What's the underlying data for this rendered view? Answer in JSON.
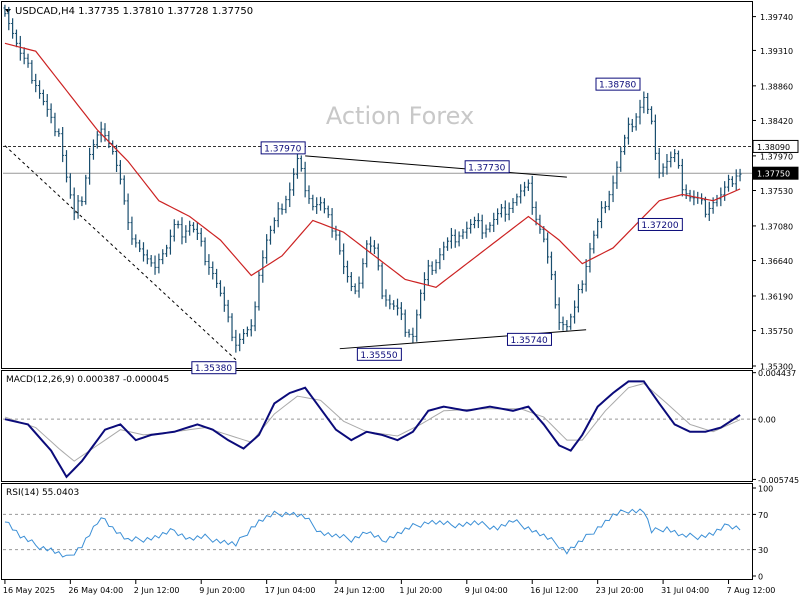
{
  "header": {
    "symbol_line": "USDCAD,H4  1.37735 1.37810 1.37728 1.37750"
  },
  "watermark": "Action Forex",
  "colors": {
    "price_bars": "#1a4e6e",
    "ma_line": "#cc2222",
    "trendline": "#000000",
    "macd_line": "#0b0b7a",
    "macd_signal": "#aaaaaa",
    "rsi_line": "#3b8fd6",
    "label_border": "#0b0b7a",
    "current_price_tag": "#000000"
  },
  "chart_data": [
    {
      "type": "ohlc",
      "title": "USDCAD,H4",
      "ohlc_values": {
        "open": 1.37735,
        "high": 1.3781,
        "low": 1.37728,
        "close": 1.3775
      },
      "y_ticks": [
        "1.39740",
        "1.39310",
        "1.38860",
        "1.38420",
        "1.37970",
        "1.37530",
        "1.37080",
        "1.36640",
        "1.36190",
        "1.35750",
        "1.35300"
      ],
      "ylim": [
        1.353,
        1.399
      ],
      "x_ticks": [
        "16 May 2025",
        "26 May 04:00",
        "2 Jun 12:00",
        "9 Jun 20:00",
        "17 Jun 04:00",
        "24 Jun 12:00",
        "1 Jul 20:00",
        "9 Jul 04:00",
        "16 Jul 12:00",
        "23 Jul 20:00",
        "31 Jul 04:00",
        "7 Aug 12:00"
      ],
      "close_anchors": [
        [
          0,
          1.3985
        ],
        [
          4,
          1.3925
        ],
        [
          8,
          1.389
        ],
        [
          12,
          1.384
        ],
        [
          14,
          1.383
        ],
        [
          16,
          1.377
        ],
        [
          18,
          1.372
        ],
        [
          20,
          1.3745
        ],
        [
          22,
          1.38
        ],
        [
          24,
          1.382
        ],
        [
          26,
          1.383
        ],
        [
          28,
          1.3805
        ],
        [
          30,
          1.3765
        ],
        [
          32,
          1.3705
        ],
        [
          34,
          1.369
        ],
        [
          36,
          1.367
        ],
        [
          38,
          1.3655
        ],
        [
          40,
          1.367
        ],
        [
          42,
          1.368
        ],
        [
          44,
          1.3705
        ],
        [
          46,
          1.37
        ],
        [
          48,
          1.371
        ],
        [
          50,
          1.3695
        ],
        [
          52,
          1.367
        ],
        [
          54,
          1.365
        ],
        [
          56,
          1.362
        ],
        [
          58,
          1.3585
        ],
        [
          60,
          1.356
        ],
        [
          62,
          1.357
        ],
        [
          64,
          1.3575
        ],
        [
          66,
          1.365
        ],
        [
          68,
          1.369
        ],
        [
          70,
          1.371
        ],
        [
          72,
          1.3735
        ],
        [
          74,
          1.3755
        ],
        [
          76,
          1.379
        ],
        [
          78,
          1.376
        ],
        [
          80,
          1.3735
        ],
        [
          82,
          1.3735
        ],
        [
          84,
          1.3715
        ],
        [
          86,
          1.37
        ],
        [
          88,
          1.3655
        ],
        [
          90,
          1.3625
        ],
        [
          92,
          1.364
        ],
        [
          94,
          1.3685
        ],
        [
          96,
          1.3675
        ],
        [
          98,
          1.3625
        ],
        [
          100,
          1.361
        ],
        [
          102,
          1.36
        ],
        [
          104,
          1.358
        ],
        [
          106,
          1.357
        ],
        [
          108,
          1.362
        ],
        [
          110,
          1.365
        ],
        [
          112,
          1.3665
        ],
        [
          114,
          1.368
        ],
        [
          116,
          1.369
        ],
        [
          118,
          1.37
        ],
        [
          120,
          1.3705
        ],
        [
          122,
          1.371
        ],
        [
          124,
          1.3705
        ],
        [
          126,
          1.371
        ],
        [
          128,
          1.372
        ],
        [
          130,
          1.373
        ],
        [
          132,
          1.374
        ],
        [
          134,
          1.375
        ],
        [
          136,
          1.3755
        ],
        [
          138,
          1.372
        ],
        [
          140,
          1.369
        ],
        [
          142,
          1.364
        ],
        [
          144,
          1.359
        ],
        [
          146,
          1.358
        ],
        [
          148,
          1.36
        ],
        [
          150,
          1.364
        ],
        [
          152,
          1.368
        ],
        [
          154,
          1.371
        ],
        [
          156,
          1.374
        ],
        [
          158,
          1.3765
        ],
        [
          160,
          1.38
        ],
        [
          162,
          1.383
        ],
        [
          164,
          1.385
        ],
        [
          166,
          1.387
        ],
        [
          168,
          1.3835
        ],
        [
          170,
          1.378
        ],
        [
          172,
          1.379
        ],
        [
          174,
          1.3795
        ],
        [
          176,
          1.376
        ],
        [
          178,
          1.3745
        ],
        [
          180,
          1.374
        ],
        [
          182,
          1.373
        ],
        [
          184,
          1.374
        ],
        [
          186,
          1.3745
        ],
        [
          188,
          1.376
        ],
        [
          190,
          1.3775
        ],
        [
          191,
          1.3775
        ]
      ],
      "ma_anchors": [
        [
          0,
          1.394
        ],
        [
          8,
          1.393
        ],
        [
          16,
          1.388
        ],
        [
          24,
          1.383
        ],
        [
          32,
          1.379
        ],
        [
          40,
          1.374
        ],
        [
          48,
          1.372
        ],
        [
          56,
          1.369
        ],
        [
          64,
          1.3645
        ],
        [
          72,
          1.367
        ],
        [
          80,
          1.3715
        ],
        [
          88,
          1.37
        ],
        [
          96,
          1.367
        ],
        [
          104,
          1.364
        ],
        [
          112,
          1.363
        ],
        [
          120,
          1.366
        ],
        [
          128,
          1.369
        ],
        [
          136,
          1.372
        ],
        [
          144,
          1.369
        ],
        [
          150,
          1.366
        ],
        [
          158,
          1.368
        ],
        [
          166,
          1.372
        ],
        [
          170,
          1.374
        ],
        [
          176,
          1.3748
        ],
        [
          184,
          1.374
        ],
        [
          191,
          1.3755
        ]
      ],
      "annotations": [
        {
          "label": "1.35380",
          "x": 60,
          "y": 1.3538
        },
        {
          "label": "1.37970",
          "x": 78,
          "y": 1.3797
        },
        {
          "label": "1.35550",
          "x": 103,
          "y": 1.3555
        },
        {
          "label": "1.37730",
          "x": 131,
          "y": 1.3773
        },
        {
          "label": "1.35740",
          "x": 142,
          "y": 1.3574
        },
        {
          "label": "1.38780",
          "x": 165,
          "y": 1.3878
        },
        {
          "label": "1.37200",
          "x": 176,
          "y": 1.372
        }
      ],
      "trendlines": [
        {
          "style": "dashed",
          "from": [
            0,
            1.381
          ],
          "to": [
            60,
            1.3538
          ]
        },
        {
          "style": "solid",
          "from": [
            78,
            1.3797
          ],
          "to": [
            146,
            1.377
          ]
        },
        {
          "style": "solid",
          "from": [
            87,
            1.3552
          ],
          "to": [
            151,
            1.3576
          ]
        }
      ],
      "hlines": [
        {
          "label": "1.38090",
          "value": 1.3809,
          "style": "dashed"
        },
        {
          "label": "1.37750",
          "value": 1.3775,
          "style": "solid"
        }
      ]
    },
    {
      "type": "line",
      "title": "MACD(12,26,9) 0.000387 -0.000045",
      "y_ticks": [
        "0.004437",
        "0.00",
        "-0.005745"
      ],
      "ylim": [
        -0.0058,
        0.0045
      ],
      "macd_anchors": [
        [
          0,
          0.0
        ],
        [
          6,
          -0.0005
        ],
        [
          12,
          -0.003
        ],
        [
          16,
          -0.0055
        ],
        [
          20,
          -0.004
        ],
        [
          26,
          -0.001
        ],
        [
          30,
          -0.0005
        ],
        [
          34,
          -0.002
        ],
        [
          38,
          -0.0015
        ],
        [
          44,
          -0.0012
        ],
        [
          50,
          -0.0005
        ],
        [
          54,
          -0.001
        ],
        [
          58,
          -0.002
        ],
        [
          62,
          -0.0028
        ],
        [
          66,
          -0.0015
        ],
        [
          70,
          0.0015
        ],
        [
          74,
          0.0025
        ],
        [
          78,
          0.003
        ],
        [
          82,
          0.001
        ],
        [
          86,
          -0.001
        ],
        [
          90,
          -0.002
        ],
        [
          94,
          -0.0012
        ],
        [
          98,
          -0.0015
        ],
        [
          102,
          -0.002
        ],
        [
          106,
          -0.0012
        ],
        [
          110,
          0.0008
        ],
        [
          114,
          0.0012
        ],
        [
          120,
          0.0008
        ],
        [
          126,
          0.0012
        ],
        [
          132,
          0.0008
        ],
        [
          136,
          0.0012
        ],
        [
          140,
          -0.0005
        ],
        [
          144,
          -0.0025
        ],
        [
          147,
          -0.003
        ],
        [
          150,
          -0.0015
        ],
        [
          154,
          0.0012
        ],
        [
          158,
          0.0025
        ],
        [
          162,
          0.0036
        ],
        [
          166,
          0.0036
        ],
        [
          170,
          0.0015
        ],
        [
          174,
          -0.0005
        ],
        [
          178,
          -0.0012
        ],
        [
          182,
          -0.0012
        ],
        [
          186,
          -0.0008
        ],
        [
          191,
          0.0004
        ]
      ],
      "signal_anchors": [
        [
          0,
          0.0002
        ],
        [
          8,
          -0.0008
        ],
        [
          14,
          -0.0028
        ],
        [
          18,
          -0.004
        ],
        [
          24,
          -0.0025
        ],
        [
          30,
          -0.001
        ],
        [
          36,
          -0.0015
        ],
        [
          44,
          -0.0012
        ],
        [
          52,
          -0.0008
        ],
        [
          58,
          -0.0015
        ],
        [
          64,
          -0.0022
        ],
        [
          70,
          0.0005
        ],
        [
          76,
          0.0022
        ],
        [
          82,
          0.0018
        ],
        [
          88,
          -0.0002
        ],
        [
          94,
          -0.0012
        ],
        [
          102,
          -0.0016
        ],
        [
          108,
          -0.0005
        ],
        [
          114,
          0.0008
        ],
        [
          124,
          0.001
        ],
        [
          134,
          0.001
        ],
        [
          140,
          0.0002
        ],
        [
          146,
          -0.002
        ],
        [
          150,
          -0.002
        ],
        [
          156,
          0.0008
        ],
        [
          162,
          0.003
        ],
        [
          166,
          0.0034
        ],
        [
          172,
          0.0015
        ],
        [
          178,
          -0.0005
        ],
        [
          184,
          -0.0012
        ],
        [
          191,
          -5e-05
        ]
      ]
    },
    {
      "type": "line",
      "title": "RSI(14) 55.0403",
      "y_ticks": [
        "100",
        "70",
        "30",
        "0"
      ],
      "ylim": [
        0,
        100
      ],
      "rsi_anchors": [
        [
          0,
          65
        ],
        [
          4,
          45
        ],
        [
          8,
          35
        ],
        [
          12,
          30
        ],
        [
          16,
          20
        ],
        [
          20,
          35
        ],
        [
          24,
          60
        ],
        [
          26,
          65
        ],
        [
          28,
          55
        ],
        [
          32,
          40
        ],
        [
          36,
          42
        ],
        [
          40,
          45
        ],
        [
          44,
          52
        ],
        [
          48,
          42
        ],
        [
          52,
          44
        ],
        [
          56,
          40
        ],
        [
          60,
          35
        ],
        [
          64,
          55
        ],
        [
          66,
          62
        ],
        [
          70,
          70
        ],
        [
          74,
          72
        ],
        [
          78,
          66
        ],
        [
          82,
          50
        ],
        [
          86,
          45
        ],
        [
          90,
          42
        ],
        [
          94,
          50
        ],
        [
          98,
          40
        ],
        [
          102,
          48
        ],
        [
          106,
          56
        ],
        [
          110,
          62
        ],
        [
          116,
          58
        ],
        [
          122,
          60
        ],
        [
          128,
          55
        ],
        [
          132,
          62
        ],
        [
          136,
          55
        ],
        [
          140,
          45
        ],
        [
          144,
          35
        ],
        [
          146,
          28
        ],
        [
          150,
          40
        ],
        [
          154,
          55
        ],
        [
          158,
          68
        ],
        [
          162,
          75
        ],
        [
          166,
          74
        ],
        [
          168,
          50
        ],
        [
          172,
          55
        ],
        [
          176,
          45
        ],
        [
          180,
          45
        ],
        [
          184,
          48
        ],
        [
          188,
          58
        ],
        [
          191,
          55
        ]
      ]
    }
  ]
}
